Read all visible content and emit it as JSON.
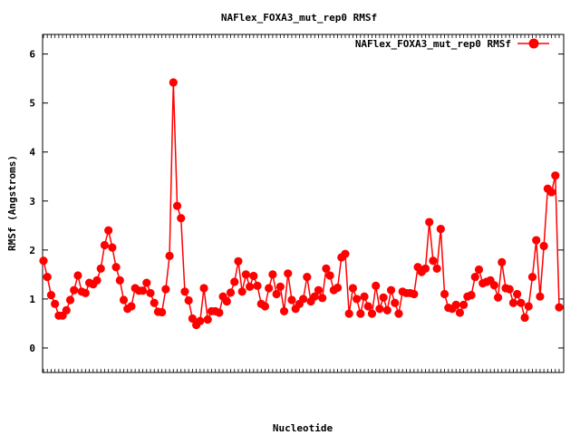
{
  "chart_data": {
    "type": "line",
    "title": "NAFlex_FOXA3_mut_rep0 RMSf",
    "xlabel": "Nucleotide",
    "ylabel": "RMSf (Angstroms)",
    "ylim": [
      -0.5,
      6.4
    ],
    "yticks": [
      0,
      1,
      2,
      3,
      4,
      5,
      6
    ],
    "legend_position": "top-right",
    "grid": false,
    "series": [
      {
        "name": "NAFlex_FOXA3_mut_rep0 RMSf",
        "color": "#ff0000",
        "values": [
          1.78,
          1.45,
          1.08,
          0.9,
          0.66,
          0.66,
          0.77,
          0.98,
          1.18,
          1.48,
          1.15,
          1.12,
          1.33,
          1.3,
          1.38,
          1.62,
          2.1,
          2.4,
          2.05,
          1.65,
          1.38,
          0.98,
          0.8,
          0.85,
          1.22,
          1.17,
          1.17,
          1.33,
          1.12,
          0.92,
          0.74,
          0.73,
          1.2,
          1.88,
          5.42,
          2.9,
          2.65,
          1.15,
          0.97,
          0.6,
          0.47,
          0.55,
          1.22,
          0.58,
          0.75,
          0.75,
          0.72,
          1.05,
          0.95,
          1.13,
          1.35,
          1.77,
          1.15,
          1.5,
          1.25,
          1.47,
          1.27,
          0.9,
          0.85,
          1.22,
          1.5,
          1.1,
          1.25,
          0.75,
          1.52,
          0.98,
          0.8,
          0.9,
          1.0,
          1.45,
          0.95,
          1.05,
          1.18,
          1.02,
          1.62,
          1.48,
          1.18,
          1.23,
          1.85,
          1.92,
          0.7,
          1.22,
          1.0,
          0.7,
          1.05,
          0.85,
          0.7,
          1.27,
          0.8,
          1.03,
          0.77,
          1.18,
          0.92,
          0.7,
          1.15,
          1.12,
          1.12,
          1.1,
          1.65,
          1.55,
          1.62,
          2.57,
          1.78,
          1.62,
          2.43,
          1.1,
          0.82,
          0.8,
          0.88,
          0.72,
          0.88,
          1.05,
          1.08,
          1.45,
          1.6,
          1.32,
          1.35,
          1.38,
          1.28,
          1.03,
          1.75,
          1.22,
          1.2,
          0.92,
          1.1,
          0.92,
          0.62,
          0.85,
          1.45,
          2.2,
          1.05,
          2.08,
          3.25,
          3.18,
          3.52,
          0.83
        ]
      }
    ]
  }
}
